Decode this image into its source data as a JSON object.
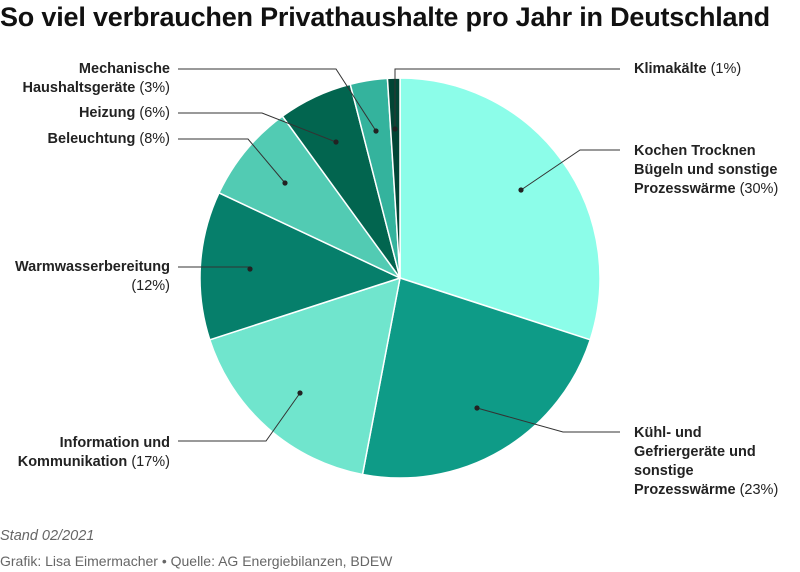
{
  "chart_data": {
    "type": "pie",
    "title": "So viel verbrauchen Privathaushalte pro Jahr in Deutschland",
    "unit": "%",
    "slices": [
      {
        "label": "Kochen Trocknen Bügeln und sonstige Prozesswärme",
        "value": 30,
        "color": "#8cfde9"
      },
      {
        "label": "Kühl- und Gefriergeräte und sonstige Prozesswärme",
        "value": 23,
        "color": "#0e9b87"
      },
      {
        "label": "Information und Kommunikation",
        "value": 17,
        "color": "#70e5cd"
      },
      {
        "label": "Warmwasserbereitung",
        "value": 12,
        "color": "#067f6b"
      },
      {
        "label": "Beleuchtung",
        "value": 8,
        "color": "#52cbb3"
      },
      {
        "label": "Heizung",
        "value": 6,
        "color": "#02654f"
      },
      {
        "label": "Mechanische Haushaltsgeräte",
        "value": 3,
        "color": "#34b39d"
      },
      {
        "label": "Klimakälte",
        "value": 1,
        "color": "#014535"
      }
    ]
  },
  "labels": [
    {
      "lines": [
        "Kochen Trocknen",
        "Bügeln und sonstige",
        "Prozesswärme"
      ],
      "pct": "(30%)"
    },
    {
      "lines": [
        "Kühl- und",
        "Gefriergeräte und",
        "sonstige",
        "Prozesswärme"
      ],
      "pct": "(23%)"
    },
    {
      "lines": [
        "Information und",
        "Kommunikation"
      ],
      "pct": "(17%)"
    },
    {
      "lines": [
        "Warmwasserbereitung"
      ],
      "pct": "(12%)",
      "pct_newline": true
    },
    {
      "lines": [
        "Beleuchtung"
      ],
      "pct": "(8%)"
    },
    {
      "lines": [
        "Heizung"
      ],
      "pct": "(6%)"
    },
    {
      "lines": [
        "Mechanische",
        "Haushaltsgeräte"
      ],
      "pct": "(3%)"
    },
    {
      "lines": [
        "Klimakälte"
      ],
      "pct": "(1%)"
    }
  ],
  "footer": {
    "stand": "Stand 02/2021",
    "credit": "Grafik: Lisa Eimermacher • Quelle: AG Energiebilanzen, BDEW"
  }
}
